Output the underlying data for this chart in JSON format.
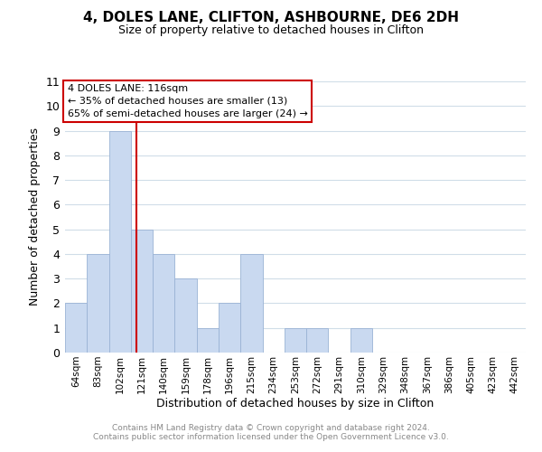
{
  "title": "4, DOLES LANE, CLIFTON, ASHBOURNE, DE6 2DH",
  "subtitle": "Size of property relative to detached houses in Clifton",
  "xlabel": "Distribution of detached houses by size in Clifton",
  "ylabel": "Number of detached properties",
  "bar_labels": [
    "64sqm",
    "83sqm",
    "102sqm",
    "121sqm",
    "140sqm",
    "159sqm",
    "178sqm",
    "196sqm",
    "215sqm",
    "234sqm",
    "253sqm",
    "272sqm",
    "291sqm",
    "310sqm",
    "329sqm",
    "348sqm",
    "367sqm",
    "386sqm",
    "405sqm",
    "423sqm",
    "442sqm"
  ],
  "bar_values": [
    2,
    4,
    9,
    5,
    4,
    3,
    1,
    2,
    4,
    0,
    1,
    1,
    0,
    1,
    0,
    0,
    0,
    0,
    0,
    0,
    0
  ],
  "bar_color": "#c9d9f0",
  "bar_edge_color": "#9ab3d5",
  "grid_color": "#d0dde8",
  "annotation_title": "4 DOLES LANE: 116sqm",
  "annotation_line1": "← 35% of detached houses are smaller (13)",
  "annotation_line2": "65% of semi-detached houses are larger (24) →",
  "annotation_box_color": "#ffffff",
  "annotation_border_color": "#cc0000",
  "reference_line_color": "#cc0000",
  "ylim": [
    0,
    11
  ],
  "yticks": [
    0,
    1,
    2,
    3,
    4,
    5,
    6,
    7,
    8,
    9,
    10,
    11
  ],
  "footer_line1": "Contains HM Land Registry data © Crown copyright and database right 2024.",
  "footer_line2": "Contains public sector information licensed under the Open Government Licence v3.0.",
  "footer_color": "#888888",
  "title_fontsize": 11,
  "subtitle_fontsize": 9
}
